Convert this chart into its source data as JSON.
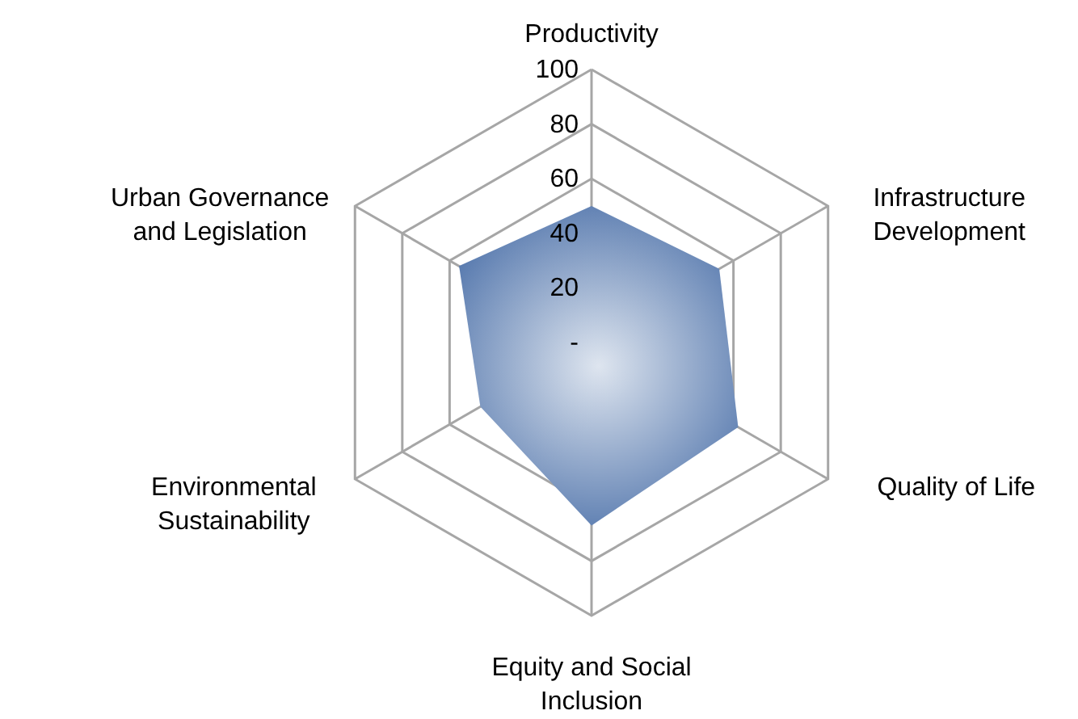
{
  "chart_data": {
    "type": "radar",
    "categories": [
      "Productivity",
      "Infrastructure Development",
      "Quality of Life",
      "Equity and Social Inclusion",
      "Environmental Sustainability",
      "Urban Governance and Legislation"
    ],
    "series": [
      {
        "color": "#4a6fa8",
        "values": [
          50,
          54,
          62,
          67,
          47,
          56
        ]
      }
    ],
    "ylim": [
      0,
      100
    ],
    "yticks": [
      {
        "value": 0,
        "label": "-"
      },
      20,
      40,
      60,
      80,
      100
    ],
    "grid": true
  }
}
